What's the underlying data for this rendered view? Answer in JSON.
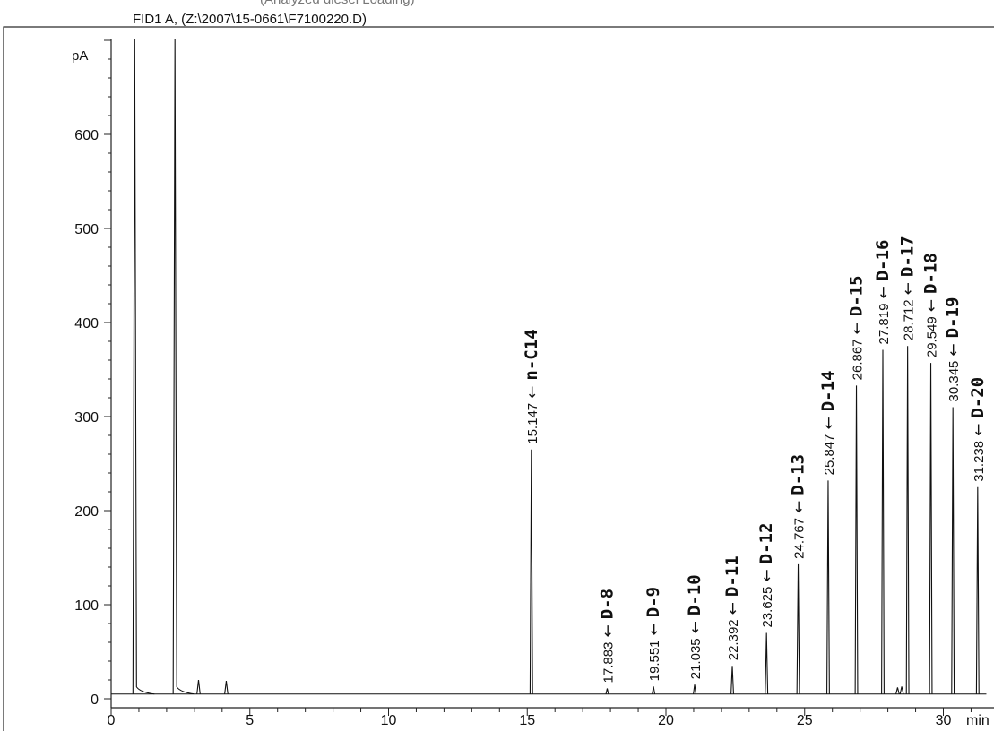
{
  "header": {
    "top_partial": "(Analyzed diesel Loading)",
    "signal": "FID1 A,  (Z:\\2007\\15-0661\\F7100220.D)"
  },
  "chart_data": {
    "type": "line",
    "title": "",
    "xlabel": "min",
    "ylabel": "pA",
    "xlim": [
      0,
      31.4
    ],
    "ylim": [
      0,
      700
    ],
    "x_ticks": [
      0,
      5,
      10,
      15,
      20,
      25,
      30
    ],
    "y_ticks": [
      0,
      100,
      200,
      300,
      400,
      500,
      600
    ],
    "x_tick_labels": [
      "0",
      "5",
      "10",
      "15",
      "20",
      "25",
      "30"
    ],
    "y_tick_labels": [
      "0",
      "100",
      "200",
      "300",
      "400",
      "500",
      "600"
    ],
    "baseline": 5,
    "solvent_peaks": [
      {
        "rt": 0.85,
        "height": 760
      },
      {
        "rt": 2.3,
        "height": 760
      }
    ],
    "minor_peaks": [
      {
        "rt": 3.15,
        "height": 20
      },
      {
        "rt": 4.15,
        "height": 19
      },
      {
        "rt": 28.35,
        "height": 12
      },
      {
        "rt": 28.5,
        "height": 13
      }
    ],
    "peaks": [
      {
        "rt_label": "15.147",
        "rt": 15.147,
        "compound": "n-C14",
        "height": 265
      },
      {
        "rt_label": "17.883",
        "rt": 17.883,
        "compound": "D-8",
        "height": 11
      },
      {
        "rt_label": "19.551",
        "rt": 19.551,
        "compound": "D-9",
        "height": 13
      },
      {
        "rt_label": "21.035",
        "rt": 21.035,
        "compound": "D-10",
        "height": 15
      },
      {
        "rt_label": "22.392",
        "rt": 22.392,
        "compound": "D-11",
        "height": 35
      },
      {
        "rt_label": "23.625",
        "rt": 23.625,
        "compound": "D-12",
        "height": 70
      },
      {
        "rt_label": "24.767",
        "rt": 24.767,
        "compound": "D-13",
        "height": 143
      },
      {
        "rt_label": "25.847",
        "rt": 25.847,
        "compound": "D-14",
        "height": 232
      },
      {
        "rt_label": "26.867",
        "rt": 26.867,
        "compound": "D-15",
        "height": 333
      },
      {
        "rt_label": "27.819",
        "rt": 27.819,
        "compound": "D-16",
        "height": 371
      },
      {
        "rt_label": "28.712",
        "rt": 28.712,
        "compound": "D-17",
        "height": 375
      },
      {
        "rt_label": "29.549",
        "rt": 29.549,
        "compound": "D-18",
        "height": 357
      },
      {
        "rt_label": "30.345",
        "rt": 30.345,
        "compound": "D-19",
        "height": 310
      },
      {
        "rt_label": "31.238",
        "rt": 31.238,
        "compound": "D-20",
        "height": 225
      }
    ],
    "arrow_glyph": "←"
  }
}
